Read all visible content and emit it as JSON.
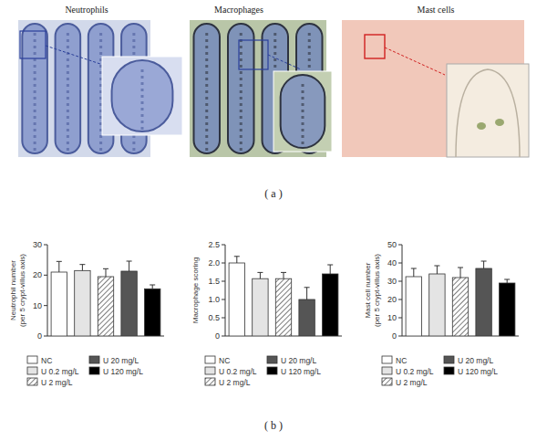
{
  "figure": {
    "image_titles": [
      "Neutrophils",
      "Macrophages",
      "Mast cells"
    ],
    "panel_labels": [
      "( a )",
      "( b )"
    ]
  },
  "chart_data": [
    {
      "type": "bar",
      "ylabel": [
        "Neutrophil number",
        "(per 5 crypt-villus axis)"
      ],
      "ylim": [
        0,
        30
      ],
      "yticks": [
        0,
        10,
        20,
        30
      ],
      "series": [
        {
          "name": "NC",
          "color": "#ffffff",
          "values": [
            21
          ],
          "errors": [
            3.5
          ]
        },
        {
          "name": "U 0.2 mg/L",
          "color": "#e4e4e4",
          "values": [
            21.5
          ],
          "errors": [
            2
          ]
        },
        {
          "name": "U 2 mg/L",
          "color": "#ffffff",
          "line_style": "hatched",
          "values": [
            19.5
          ],
          "errors": [
            2.6
          ]
        },
        {
          "name": "U 20 mg/L",
          "color": "#555555",
          "values": [
            21.3
          ],
          "errors": [
            3.3
          ]
        },
        {
          "name": "U 120 mg/L",
          "color": "#000000",
          "values": [
            15.5
          ],
          "errors": [
            1.3
          ]
        }
      ]
    },
    {
      "type": "bar",
      "ylabel": [
        "Macrophage scoring"
      ],
      "ylim": [
        0,
        2.5
      ],
      "yticks": [
        0,
        0.5,
        {
          "value": 1,
          "label": "1.0"
        },
        1.5,
        {
          "value": 2,
          "label": "2.0"
        },
        2.5
      ],
      "series": [
        {
          "name": "NC",
          "color": "#ffffff",
          "values": [
            2.0
          ],
          "errors": [
            0.18
          ]
        },
        {
          "name": "U 0.2 mg/L",
          "color": "#e4e4e4",
          "values": [
            1.57
          ],
          "errors": [
            0.17
          ]
        },
        {
          "name": "U 2 mg/L",
          "color": "#ffffff",
          "line_style": "hatched",
          "values": [
            1.57
          ],
          "errors": [
            0.17
          ]
        },
        {
          "name": "U 20 mg/L",
          "color": "#555555",
          "values": [
            1.0
          ],
          "errors": [
            0.33
          ]
        },
        {
          "name": "U 120 mg/L",
          "color": "#000000",
          "values": [
            1.7
          ],
          "errors": [
            0.25
          ]
        }
      ]
    },
    {
      "type": "bar",
      "ylabel": [
        "Mast cell number",
        "(per 5 crypt-villus axis)"
      ],
      "ylim": [
        0,
        50
      ],
      "yticks": [
        0,
        10,
        20,
        30,
        40,
        50
      ],
      "series": [
        {
          "name": "NC",
          "color": "#ffffff",
          "values": [
            32.5
          ],
          "errors": [
            4.5
          ]
        },
        {
          "name": "U 0.2 mg/L",
          "color": "#e4e4e4",
          "values": [
            34
          ],
          "errors": [
            4.5
          ]
        },
        {
          "name": "U 2 mg/L",
          "color": "#ffffff",
          "line_style": "hatched",
          "values": [
            32
          ],
          "errors": [
            5.5
          ]
        },
        {
          "name": "U 20 mg/L",
          "color": "#555555",
          "values": [
            37
          ],
          "errors": [
            4
          ]
        },
        {
          "name": "U 120 mg/L",
          "color": "#000000",
          "values": [
            29
          ],
          "errors": [
            2
          ]
        }
      ]
    }
  ]
}
